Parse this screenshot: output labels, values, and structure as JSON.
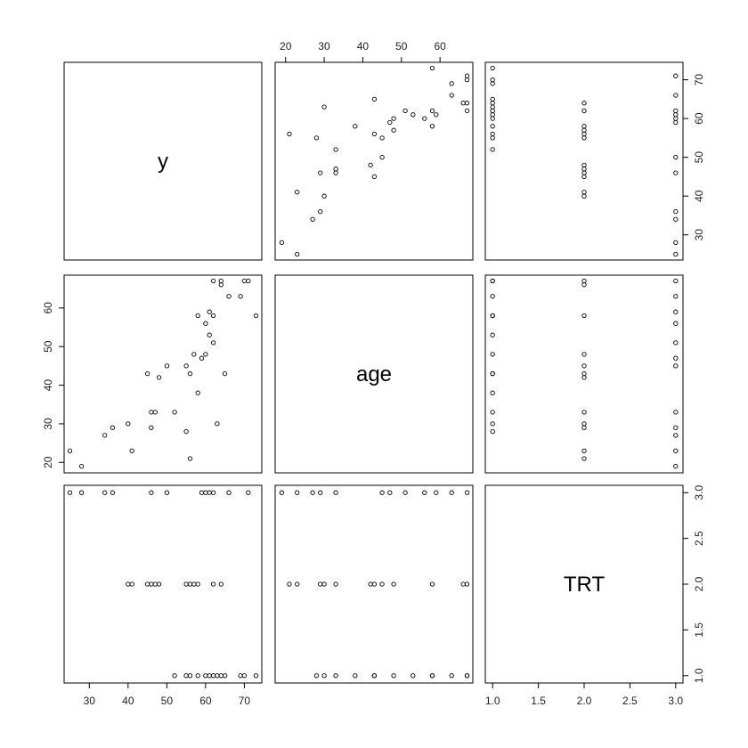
{
  "chart_data": {
    "type": "scatter",
    "kind": "scatterplot-matrix",
    "variables": [
      {
        "name": "y",
        "range": [
          23.5,
          74.5
        ],
        "ticks": [
          30,
          40,
          50,
          60,
          70
        ]
      },
      {
        "name": "age",
        "range": [
          17.3,
          68.5
        ],
        "ticks": [
          20,
          30,
          40,
          50,
          60
        ]
      },
      {
        "name": "TRT",
        "range": [
          0.92,
          3.08
        ],
        "ticks": [
          1.0,
          1.5,
          2.0,
          2.5,
          3.0
        ]
      }
    ],
    "points": [
      {
        "y": 28,
        "age": 19,
        "TRT": 3
      },
      {
        "y": 25,
        "age": 23,
        "TRT": 3
      },
      {
        "y": 34,
        "age": 27,
        "TRT": 3
      },
      {
        "y": 36,
        "age": 29,
        "TRT": 3
      },
      {
        "y": 46,
        "age": 33,
        "TRT": 3
      },
      {
        "y": 50,
        "age": 45,
        "TRT": 3
      },
      {
        "y": 59,
        "age": 47,
        "TRT": 3
      },
      {
        "y": 62,
        "age": 51,
        "TRT": 3
      },
      {
        "y": 71,
        "age": 67,
        "TRT": 3
      },
      {
        "y": 61,
        "age": 59,
        "TRT": 3
      },
      {
        "y": 66,
        "age": 63,
        "TRT": 3
      },
      {
        "y": 60,
        "age": 56,
        "TRT": 3
      },
      {
        "y": 56,
        "age": 21,
        "TRT": 2
      },
      {
        "y": 41,
        "age": 23,
        "TRT": 2
      },
      {
        "y": 40,
        "age": 30,
        "TRT": 2
      },
      {
        "y": 46,
        "age": 29,
        "TRT": 2
      },
      {
        "y": 47,
        "age": 33,
        "TRT": 2
      },
      {
        "y": 48,
        "age": 42,
        "TRT": 2
      },
      {
        "y": 45,
        "age": 43,
        "TRT": 2
      },
      {
        "y": 55,
        "age": 45,
        "TRT": 2
      },
      {
        "y": 57,
        "age": 48,
        "TRT": 2
      },
      {
        "y": 58,
        "age": 58,
        "TRT": 2
      },
      {
        "y": 62,
        "age": 67,
        "TRT": 2
      },
      {
        "y": 64,
        "age": 66,
        "TRT": 2
      },
      {
        "y": 52,
        "age": 33,
        "TRT": 1
      },
      {
        "y": 55,
        "age": 28,
        "TRT": 1
      },
      {
        "y": 58,
        "age": 38,
        "TRT": 1
      },
      {
        "y": 56,
        "age": 43,
        "TRT": 1
      },
      {
        "y": 60,
        "age": 48,
        "TRT": 1
      },
      {
        "y": 61,
        "age": 53,
        "TRT": 1
      },
      {
        "y": 62,
        "age": 58,
        "TRT": 1
      },
      {
        "y": 63,
        "age": 30,
        "TRT": 1
      },
      {
        "y": 64,
        "age": 67,
        "TRT": 1
      },
      {
        "y": 65,
        "age": 43,
        "TRT": 1
      },
      {
        "y": 69,
        "age": 63,
        "TRT": 1
      },
      {
        "y": 70,
        "age": 67,
        "TRT": 1
      },
      {
        "y": 73,
        "age": 58,
        "TRT": 1
      }
    ],
    "grid": false,
    "legend": "none"
  }
}
